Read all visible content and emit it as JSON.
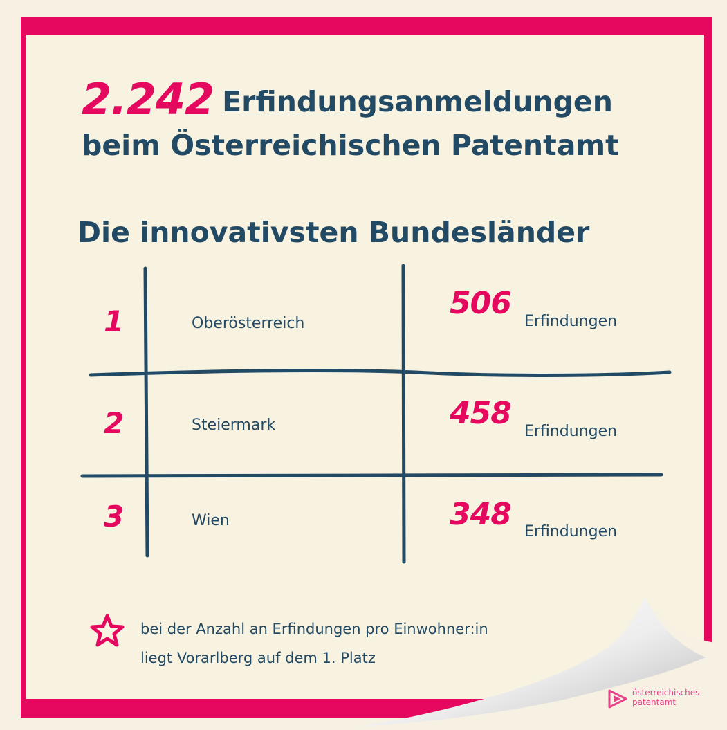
{
  "headline": {
    "number": "2.242",
    "line1_rest": "Erfindungsanmeldungen",
    "line2": "beim Österreichischen Patentamt"
  },
  "subheading": "Die innovativsten Bundesländer",
  "ranking": [
    {
      "rank": "1",
      "state": "Oberösterreich",
      "count": "506",
      "unit": "Erfindungen"
    },
    {
      "rank": "2",
      "state": "Steiermark",
      "count": "458",
      "unit": "Erfindungen"
    },
    {
      "rank": "3",
      "state": "Wien",
      "count": "348",
      "unit": "Erfindungen"
    }
  ],
  "note": {
    "line1": "bei der Anzahl an Erfindungen pro Einwohner:in",
    "line2": "liegt Vorarlberg auf dem 1. Platz",
    "icon": "star-icon"
  },
  "logo": {
    "line1": "österreichisches",
    "line2": "patentamt"
  },
  "colors": {
    "accent": "#e4095f",
    "text": "#234a64",
    "paper": "#f8f2e1"
  }
}
